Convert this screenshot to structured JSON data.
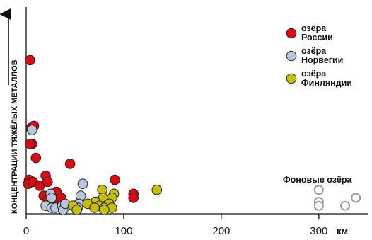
{
  "chart_data": {
    "type": "scatter",
    "title": "",
    "ylabel": "КОНЦЕНТРАЦИИ ТЯЖЁЛЫХ МЕТАЛЛОВ",
    "xlabel": "км",
    "xlim": [
      0,
      340
    ],
    "ylim": [
      0,
      100
    ],
    "x_ticks": [
      "0",
      "100",
      "200",
      "300"
    ],
    "x_tick_values": [
      0,
      100,
      200,
      300
    ],
    "legend_position": "top-right",
    "annotation": "Фоновые озёра",
    "series": [
      {
        "name": "озёра\nРоссии",
        "color": "#dd0a12",
        "points": [
          [
            4,
            77
          ],
          [
            5,
            43
          ],
          [
            8,
            44
          ],
          [
            6,
            35
          ],
          [
            4,
            35
          ],
          [
            10,
            28
          ],
          [
            3,
            17
          ],
          [
            2,
            15
          ],
          [
            7,
            16
          ],
          [
            14,
            14
          ],
          [
            20,
            19
          ],
          [
            22,
            16
          ],
          [
            18,
            9
          ],
          [
            22,
            7
          ],
          [
            27,
            6
          ],
          [
            31,
            11
          ],
          [
            33,
            7
          ],
          [
            36,
            8
          ],
          [
            45,
            25
          ],
          [
            91,
            17
          ],
          [
            110,
            10
          ],
          [
            110,
            8
          ]
        ]
      },
      {
        "name": "озёра\nНорвегии",
        "color": "#b7c6dc",
        "points": [
          [
            6,
            42
          ],
          [
            58,
            15
          ],
          [
            56,
            9
          ],
          [
            25,
            10
          ],
          [
            26,
            8
          ],
          [
            20,
            4
          ],
          [
            26,
            3
          ],
          [
            30,
            3
          ],
          [
            37,
            4
          ],
          [
            38,
            2
          ],
          [
            40,
            5
          ],
          [
            54,
            5
          ],
          [
            53,
            3
          ],
          [
            80,
            5
          ]
        ]
      },
      {
        "name": "озёра\nФинляндии",
        "color": "#c7bf05",
        "points": [
          [
            134,
            12
          ],
          [
            78,
            12
          ],
          [
            90,
            10
          ],
          [
            79,
            8
          ],
          [
            88,
            8
          ],
          [
            71,
            6
          ],
          [
            63,
            5
          ],
          [
            75,
            4
          ],
          [
            82,
            4
          ],
          [
            85,
            5
          ],
          [
            80,
            3
          ],
          [
            70,
            3
          ],
          [
            48,
            4
          ],
          [
            52,
            2
          ],
          [
            88,
            3
          ],
          [
            80,
            2
          ]
        ]
      },
      {
        "name": "",
        "color": "none",
        "points": [
          [
            300,
            12
          ],
          [
            300,
            6
          ],
          [
            300,
            4
          ],
          [
            327,
            4
          ],
          [
            338,
            8
          ]
        ]
      }
    ]
  }
}
